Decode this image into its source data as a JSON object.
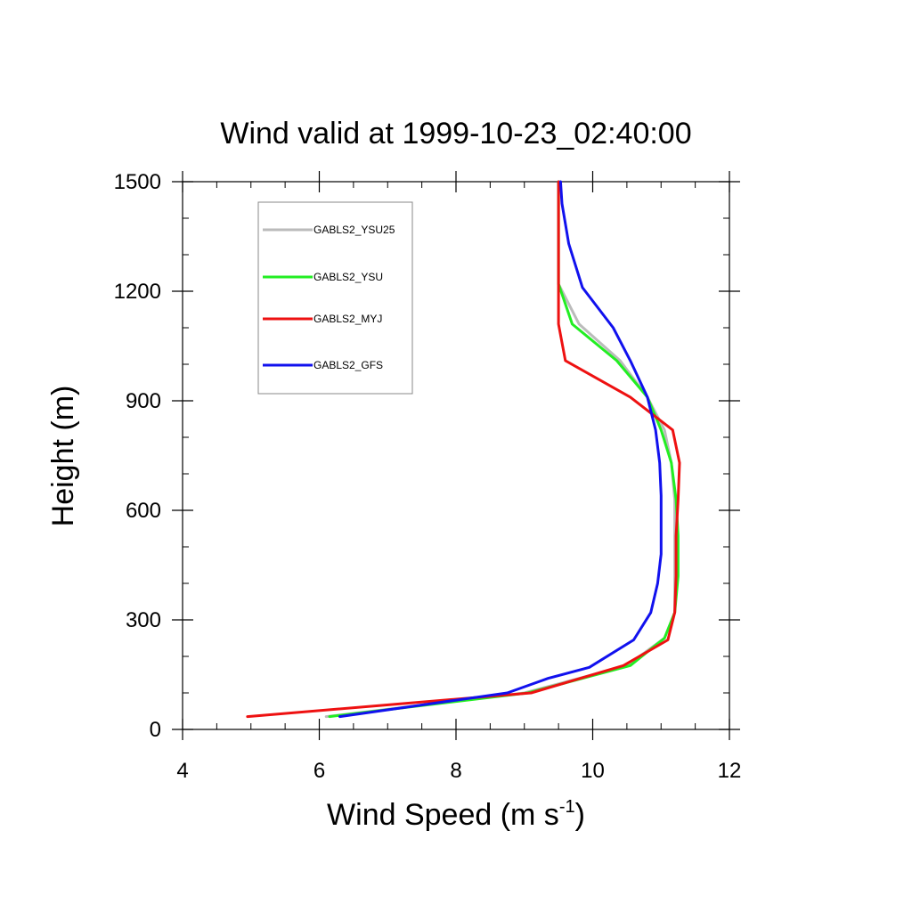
{
  "chart_data": {
    "type": "line",
    "title": "Wind valid at 1999-10-23_02:40:00",
    "xlabel": "Wind Speed (m s",
    "xlabel_sup": "-1",
    "xlabel_end": ")",
    "ylabel": "Height (m)",
    "xlim": [
      4,
      12
    ],
    "ylim": [
      0,
      1500
    ],
    "xticks": [
      4,
      6,
      8,
      10,
      12
    ],
    "yticks": [
      0,
      300,
      600,
      900,
      1200,
      1500
    ],
    "xtick_labels": [
      "4",
      "6",
      "8",
      "10",
      "12"
    ],
    "ytick_labels": [
      "0",
      "300",
      "600",
      "900",
      "1200",
      "1500"
    ],
    "grid": false,
    "legend_position": "top-left",
    "series": [
      {
        "name": "GABLS2_YSU25",
        "color": "#bbbbbb",
        "points": [
          [
            6.1,
            35
          ],
          [
            9.0,
            100
          ],
          [
            10.5,
            175
          ],
          [
            11.05,
            250
          ],
          [
            11.2,
            320
          ],
          [
            11.2,
            420
          ],
          [
            11.2,
            530
          ],
          [
            11.2,
            630
          ],
          [
            11.15,
            730
          ],
          [
            11.05,
            820
          ],
          [
            10.8,
            910
          ],
          [
            10.4,
            1010
          ],
          [
            9.8,
            1110
          ],
          [
            9.5,
            1220
          ],
          [
            9.5,
            1300
          ],
          [
            9.5,
            1400
          ],
          [
            9.5,
            1500
          ]
        ]
      },
      {
        "name": "GABLS2_YSU",
        "color": "#22ee22",
        "points": [
          [
            6.15,
            35
          ],
          [
            9.05,
            100
          ],
          [
            10.55,
            175
          ],
          [
            11.05,
            250
          ],
          [
            11.2,
            320
          ],
          [
            11.25,
            420
          ],
          [
            11.25,
            530
          ],
          [
            11.22,
            630
          ],
          [
            11.15,
            730
          ],
          [
            11.0,
            820
          ],
          [
            10.8,
            910
          ],
          [
            10.35,
            1010
          ],
          [
            9.7,
            1110
          ],
          [
            9.5,
            1220
          ],
          [
            9.5,
            1300
          ],
          [
            9.5,
            1400
          ],
          [
            9.5,
            1500
          ]
        ]
      },
      {
        "name": "GABLS2_MYJ",
        "color": "#ee1111",
        "points": [
          [
            4.95,
            35
          ],
          [
            9.1,
            100
          ],
          [
            10.45,
            175
          ],
          [
            11.1,
            245
          ],
          [
            11.2,
            320
          ],
          [
            11.22,
            420
          ],
          [
            11.22,
            530
          ],
          [
            11.25,
            630
          ],
          [
            11.27,
            730
          ],
          [
            11.17,
            820
          ],
          [
            10.55,
            910
          ],
          [
            9.6,
            1010
          ],
          [
            9.5,
            1110
          ],
          [
            9.5,
            1220
          ],
          [
            9.5,
            1300
          ],
          [
            9.5,
            1400
          ],
          [
            9.5,
            1500
          ]
        ]
      },
      {
        "name": "GABLS2_GFS",
        "color": "#1111ee",
        "points": [
          [
            6.3,
            35
          ],
          [
            8.75,
            100
          ],
          [
            9.35,
            140
          ],
          [
            9.95,
            170
          ],
          [
            10.6,
            245
          ],
          [
            10.85,
            320
          ],
          [
            10.95,
            400
          ],
          [
            11.0,
            480
          ],
          [
            11.0,
            560
          ],
          [
            11.0,
            640
          ],
          [
            10.98,
            730
          ],
          [
            10.92,
            820
          ],
          [
            10.8,
            910
          ],
          [
            10.55,
            1010
          ],
          [
            10.3,
            1100
          ],
          [
            9.85,
            1210
          ],
          [
            9.65,
            1330
          ],
          [
            9.55,
            1440
          ],
          [
            9.53,
            1500
          ]
        ]
      }
    ]
  }
}
